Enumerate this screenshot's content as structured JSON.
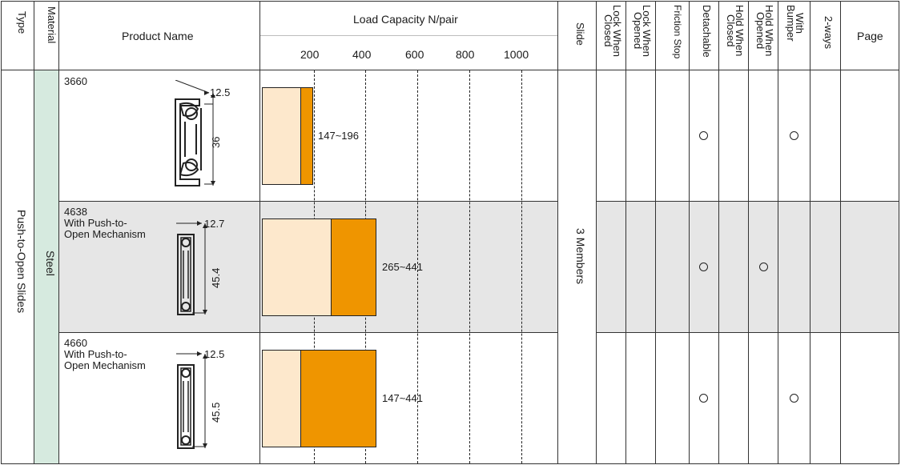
{
  "headers": {
    "type": "Type",
    "material": "Material",
    "product_name": "Product Name",
    "load_capacity": "Load Capacity N/pair",
    "ticks": [
      "200",
      "400",
      "600",
      "800",
      "1000"
    ],
    "slide": "Slide",
    "lock_when_closed": "Lock When\nClosed",
    "lock_when_opened": "Lock When\nOpened",
    "friction_stop": "Friction Stop",
    "detachable": "Detachable",
    "hold_when_closed": "Hold When\nClosed",
    "hold_when_opened": "Hold When\nOpened",
    "with_bumper": "With\nBumper",
    "two_ways": "2-ways",
    "page": "Page"
  },
  "type_value": "Push-to-Open Slides",
  "material_value": "Steel",
  "slide_value": "3 Members",
  "mark_symbol": "○",
  "colors": {
    "header_bg": "#ffffff",
    "material_bg": "#d6eadf",
    "shaded_row_bg": "#e6e6e6",
    "bar_light": "#fde8cc",
    "bar_orange": "#ef9500"
  },
  "products": [
    {
      "name": "3660",
      "width_dim": "12.5",
      "height_dim": "36",
      "load_range": "147~196",
      "load_min": 147,
      "load_max": 196,
      "features": [
        "Detachable",
        "With Bumper"
      ]
    },
    {
      "name": "4638\nWith Push-to-\nOpen Mechanism",
      "width_dim": "12.7",
      "height_dim": "45.4",
      "load_range": "265~441",
      "load_min": 265,
      "load_max": 441,
      "features": [
        "Detachable",
        "Hold When Opened"
      ]
    },
    {
      "name": "4660\nWith Push-to-\nOpen Mechanism",
      "width_dim": "12.5",
      "height_dim": "45.5",
      "load_range": "147~441",
      "load_min": 147,
      "load_max": 441,
      "features": [
        "Detachable",
        "With Bumper"
      ]
    }
  ],
  "chart_data": {
    "type": "bar",
    "categories": [
      "3660",
      "4638",
      "4660"
    ],
    "ranges": [
      [
        147,
        196
      ],
      [
        265,
        441
      ],
      [
        147,
        441
      ]
    ],
    "range_labels": [
      "147~196",
      "265~441",
      "147~441"
    ],
    "xlabel": "Load Capacity N/pair",
    "xticks": [
      200,
      400,
      600,
      800,
      1000
    ]
  }
}
